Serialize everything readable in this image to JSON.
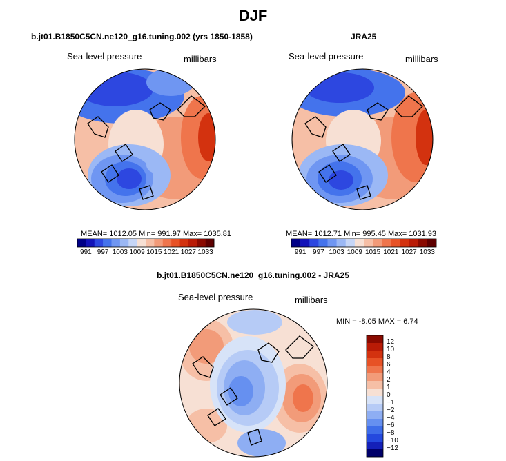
{
  "page": {
    "title": "DJF",
    "diff_title": "b.jt01.B1850C5CN.ne120_g16.tuning.002 - JRA25"
  },
  "chart_data": [
    {
      "type": "heatmap",
      "subtype": "polar stereographic filled contour map",
      "title": "b.jt01.B1850C5CN.ne120_g16.tuning.002 (yrs 1850-1858)",
      "left_label": "Sea-level pressure",
      "right_label": "millibars",
      "stats_text": "MEAN= 1012.05   Min= 991.97   Max= 1035.81",
      "stats": {
        "mean": 1012.05,
        "min": 991.97,
        "max": 1035.81
      },
      "colorbar_orientation": "horizontal",
      "colorbar_levels": [
        991,
        994,
        997,
        1000,
        1003,
        1006,
        1009,
        1012,
        1015,
        1018,
        1021,
        1024,
        1027,
        1030,
        1033
      ],
      "colorbar_labels": [
        "991",
        "997",
        "1003",
        "1009",
        "1015",
        "1021",
        "1027",
        "1033"
      ],
      "colors": [
        "#000086",
        "#1313b8",
        "#2d47e0",
        "#4473ec",
        "#6f96f2",
        "#9bb8f5",
        "#c6d6f7",
        "#f7e0d4",
        "#f6bfa6",
        "#f29b79",
        "#ef754c",
        "#e75226",
        "#d3320f",
        "#b91b06",
        "#8a0a00",
        "#5e0000"
      ]
    },
    {
      "type": "heatmap",
      "subtype": "polar stereographic filled contour map",
      "title": "JRA25",
      "left_label": "Sea-level pressure",
      "right_label": "millibars",
      "stats_text": "MEAN= 1012.71   Min= 995.45   Max= 1031.93",
      "stats": {
        "mean": 1012.71,
        "min": 995.45,
        "max": 1031.93
      },
      "colorbar_orientation": "horizontal",
      "colorbar_levels": [
        991,
        994,
        997,
        1000,
        1003,
        1006,
        1009,
        1012,
        1015,
        1018,
        1021,
        1024,
        1027,
        1030,
        1033
      ],
      "colorbar_labels": [
        "991",
        "997",
        "1003",
        "1009",
        "1015",
        "1021",
        "1027",
        "1033"
      ],
      "colors": [
        "#000086",
        "#1313b8",
        "#2d47e0",
        "#4473ec",
        "#6f96f2",
        "#9bb8f5",
        "#c6d6f7",
        "#f7e0d4",
        "#f6bfa6",
        "#f29b79",
        "#ef754c",
        "#e75226",
        "#d3320f",
        "#b91b06",
        "#8a0a00",
        "#5e0000"
      ]
    },
    {
      "type": "heatmap",
      "subtype": "polar stereographic filled contour map (difference)",
      "left_label": "Sea-level pressure",
      "right_label": "millibars",
      "stats_text": "MIN =   -8.05 MAX =    6.74",
      "stats": {
        "min": -8.05,
        "max": 6.74
      },
      "colorbar_orientation": "vertical",
      "colorbar_levels": [
        -12,
        -10,
        -8,
        -6,
        -4,
        -2,
        -1,
        0,
        1,
        2,
        4,
        6,
        8,
        10,
        12
      ],
      "colorbar_labels": [
        "12",
        "10",
        "8",
        "6",
        "4",
        "2",
        "1",
        "0",
        "−1",
        "−2",
        "−4",
        "−6",
        "−8",
        "−10",
        "−12"
      ],
      "colors": [
        "#8a0a00",
        "#b91b06",
        "#d3320f",
        "#e75226",
        "#ef754c",
        "#f29b79",
        "#f6bfa6",
        "#f7e0d4",
        "#d7e3f8",
        "#b6cbf6",
        "#8eaef3",
        "#6690f0",
        "#3e6de9",
        "#2449de",
        "#1420b8",
        "#00006a"
      ]
    }
  ]
}
